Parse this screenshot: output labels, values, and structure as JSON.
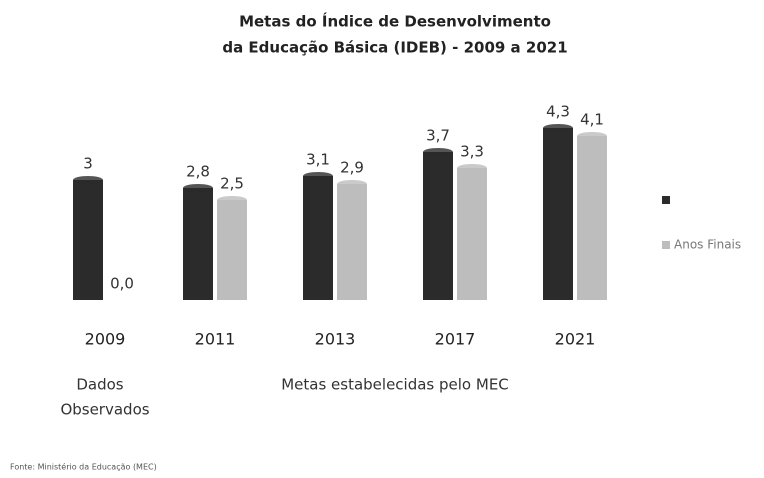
{
  "chart_data": {
    "type": "bar",
    "title": [
      "Metas do Índice de Desenvolvimento",
      "da Educação Básica (IDEB) - 2009 a 2021"
    ],
    "categories": [
      "2009",
      "2011",
      "2013",
      "2017",
      "2021"
    ],
    "series": [
      {
        "name": null,
        "color": "#2b2b2b",
        "values": [
          3,
          2.8,
          3.1,
          3.7,
          4.3
        ],
        "value_labels": [
          "3",
          "2,8",
          "3,1",
          "3,7",
          "4,3"
        ]
      },
      {
        "name": "Anos Finais",
        "color": "#bdbdbd",
        "values": [
          0,
          2.5,
          2.9,
          3.3,
          4.1
        ],
        "value_labels": [
          "0,0",
          "2,5",
          "2,9",
          "3,3",
          "4,1"
        ]
      }
    ],
    "annotations": [
      "Dados",
      "Observados",
      "Metas estabelecidas pelo MEC"
    ],
    "source": "Fonte: Ministério da Educação (MEC)"
  }
}
